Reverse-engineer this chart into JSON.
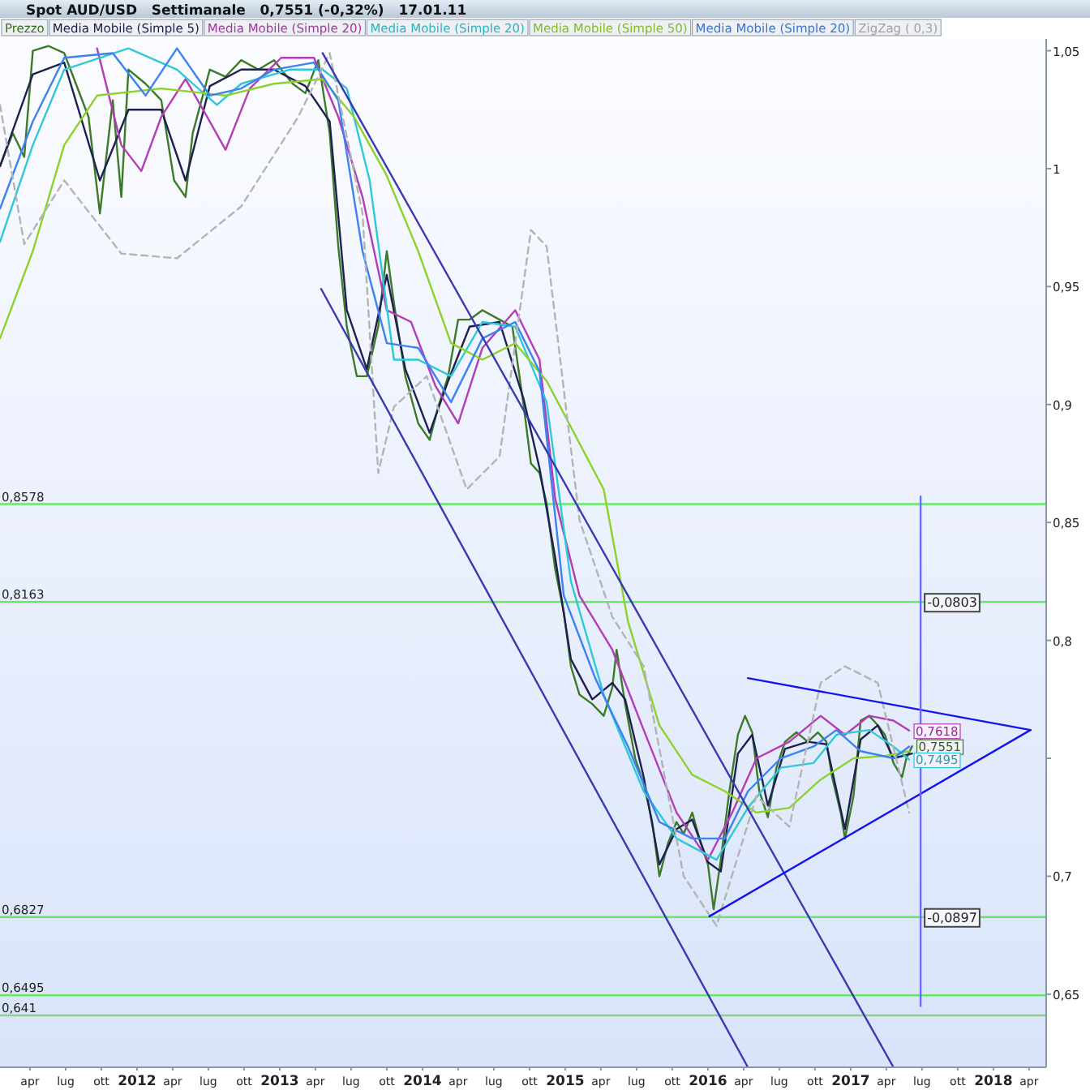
{
  "chart_data": {
    "type": "line",
    "title": "Spot AUD/USD   Settimanale   0,7551 (-0,32%)   17.01.11",
    "legend": "top left",
    "marker": "none",
    "xlim": [
      2011.04,
      2018.37
    ],
    "ylim": [
      0.619,
      1.055
    ],
    "xticks": [
      {
        "value": 2011.25,
        "label": "apr"
      },
      {
        "value": 2011.5,
        "label": "lug"
      },
      {
        "value": 2011.75,
        "label": "ott"
      },
      {
        "value": 2012,
        "label": "2012"
      },
      {
        "value": 2012.25,
        "label": "apr"
      },
      {
        "value": 2012.5,
        "label": "lug"
      },
      {
        "value": 2012.75,
        "label": "ott"
      },
      {
        "value": 2013,
        "label": "2013"
      },
      {
        "value": 2013.25,
        "label": "apr"
      },
      {
        "value": 2013.5,
        "label": "lug"
      },
      {
        "value": 2013.75,
        "label": "ott"
      },
      {
        "value": 2014,
        "label": "2014"
      },
      {
        "value": 2014.25,
        "label": "apr"
      },
      {
        "value": 2014.5,
        "label": "lug"
      },
      {
        "value": 2014.75,
        "label": "ott"
      },
      {
        "value": 2015,
        "label": "2015"
      },
      {
        "value": 2015.25,
        "label": "apr"
      },
      {
        "value": 2015.5,
        "label": "lug"
      },
      {
        "value": 2015.75,
        "label": "ott"
      },
      {
        "value": 2016,
        "label": "2016"
      },
      {
        "value": 2016.25,
        "label": "apr"
      },
      {
        "value": 2016.5,
        "label": "lug"
      },
      {
        "value": 2016.75,
        "label": "ott"
      },
      {
        "value": 2017,
        "label": "2017"
      },
      {
        "value": 2017.25,
        "label": "apr"
      },
      {
        "value": 2017.5,
        "label": "lug"
      },
      {
        "value": 2017.75,
        "label": "ott"
      },
      {
        "value": 2018,
        "label": "2018"
      },
      {
        "value": 2018.25,
        "label": "apr"
      }
    ],
    "yticks": [
      {
        "value": 0.65,
        "label": "0,65"
      },
      {
        "value": 0.7,
        "label": "0,7"
      },
      {
        "value": 0.75,
        "label": null
      },
      {
        "value": 0.8,
        "label": "0,8"
      },
      {
        "value": 0.85,
        "label": "0,85"
      },
      {
        "value": 0.9,
        "label": "0,9"
      },
      {
        "value": 0.95,
        "label": "0,95"
      },
      {
        "value": 1,
        "label": "1"
      },
      {
        "value": 1.05,
        "label": "1,05"
      }
    ],
    "ref_lines": [
      {
        "axis": "y",
        "value": 0.8578,
        "label": "0,8578",
        "color": "#66e866"
      },
      {
        "axis": "y",
        "value": 0.8163,
        "label": "0,8163",
        "color": "#66e866"
      },
      {
        "axis": "y",
        "value": 0.6827,
        "label": "0,6827",
        "color": "#66e866"
      },
      {
        "axis": "y",
        "value": 0.6495,
        "label": "0,6495",
        "color": "#66e866"
      },
      {
        "axis": "y",
        "value": 0.641,
        "label": "0,641",
        "color": "#8fcf8f"
      }
    ],
    "annotations": [
      {
        "text": "-0,0803",
        "x": 2017.49,
        "y": 0.8163
      },
      {
        "text": "-0,0897",
        "x": 2017.49,
        "y": 0.6827
      }
    ],
    "series": [
      {
        "name": "Prezzo",
        "color": "#3c7a28",
        "x": [
          2011.04,
          2011.13,
          2011.21,
          2011.27,
          2011.38,
          2011.49,
          2011.66,
          2011.74,
          2011.83,
          2011.89,
          2011.94,
          2012.06,
          2012.17,
          2012.26,
          2012.34,
          2012.39,
          2012.51,
          2012.62,
          2012.73,
          2012.85,
          2012.96,
          2013.09,
          2013.18,
          2013.27,
          2013.35,
          2013.41,
          2013.47,
          2013.54,
          2013.61,
          2013.69,
          2013.75,
          2013.8,
          2013.88,
          2013.97,
          2014.05,
          2014.11,
          2014.18,
          2014.25,
          2014.33,
          2014.42,
          2014.54,
          2014.63,
          2014.71,
          2014.76,
          2014.82,
          2014.87,
          2014.93,
          2014.99,
          2015.04,
          2015.1,
          2015.19,
          2015.27,
          2015.33,
          2015.36,
          2015.42,
          2015.49,
          2015.55,
          2015.61,
          2015.66,
          2015.72,
          2015.78,
          2015.83,
          2015.89,
          2015.95,
          2016.0,
          2016.04,
          2016.09,
          2016.15,
          2016.21,
          2016.26,
          2016.31,
          2016.36,
          2016.42,
          2016.48,
          2016.54,
          2016.62,
          2016.7,
          2016.77,
          2016.83,
          2016.87,
          2016.93,
          2016.96,
          2017.02,
          2017.07,
          2017.13,
          2017.19,
          2017.24,
          2017.3,
          2017.36,
          2017.39,
          2017.43
        ],
        "values": [
          1.001,
          1.015,
          1.005,
          1.05,
          1.052,
          1.049,
          1.022,
          0.981,
          1.029,
          0.988,
          1.042,
          1.036,
          1.029,
          0.995,
          0.988,
          1.015,
          1.042,
          1.039,
          1.046,
          1.042,
          1.046,
          1.036,
          1.032,
          1.046,
          1.015,
          0.967,
          0.933,
          0.912,
          0.912,
          0.933,
          0.965,
          0.943,
          0.912,
          0.892,
          0.885,
          0.899,
          0.912,
          0.936,
          0.936,
          0.94,
          0.936,
          0.933,
          0.899,
          0.875,
          0.871,
          0.858,
          0.83,
          0.812,
          0.789,
          0.777,
          0.773,
          0.768,
          0.78,
          0.796,
          0.773,
          0.75,
          0.739,
          0.723,
          0.7,
          0.714,
          0.723,
          0.718,
          0.727,
          0.714,
          0.705,
          0.686,
          0.707,
          0.736,
          0.76,
          0.768,
          0.761,
          0.736,
          0.725,
          0.746,
          0.757,
          0.761,
          0.757,
          0.761,
          0.757,
          0.742,
          0.727,
          0.716,
          0.734,
          0.766,
          0.768,
          0.764,
          0.76,
          0.748,
          0.742,
          0.75,
          0.7551
        ],
        "value_labels": [
          null,
          null,
          null,
          null,
          null,
          null,
          null,
          null,
          null,
          null,
          null,
          null,
          null,
          null,
          null,
          null,
          null,
          null,
          null,
          null,
          null,
          null,
          null,
          null,
          null,
          null,
          null,
          null,
          null,
          null,
          null,
          null,
          null,
          null,
          null,
          null,
          null,
          null,
          null,
          null,
          null,
          null,
          null,
          null,
          null,
          null,
          null,
          null,
          null,
          null,
          null,
          null,
          null,
          null,
          null,
          null,
          null,
          null,
          null,
          null,
          null,
          null,
          null,
          null,
          null,
          null,
          null,
          null,
          null,
          null,
          null,
          null,
          null,
          null,
          null,
          null,
          null,
          null,
          null,
          null,
          null,
          null,
          null,
          null,
          null,
          null,
          null,
          null,
          null,
          null,
          "0,7551"
        ]
      },
      {
        "name": "Media Mobile (Simple 5)",
        "color": "#1e2050",
        "x": [
          2011.04,
          2011.27,
          2011.49,
          2011.74,
          2011.94,
          2012.17,
          2012.34,
          2012.51,
          2012.73,
          2012.96,
          2013.18,
          2013.35,
          2013.47,
          2013.61,
          2013.75,
          2013.88,
          2014.05,
          2014.18,
          2014.33,
          2014.54,
          2014.71,
          2014.82,
          2014.93,
          2015.04,
          2015.19,
          2015.33,
          2015.42,
          2015.55,
          2015.66,
          2015.78,
          2015.89,
          2016.0,
          2016.09,
          2016.21,
          2016.31,
          2016.42,
          2016.54,
          2016.7,
          2016.83,
          2016.96,
          2017.07,
          2017.19,
          2017.3,
          2017.43
        ],
        "values": [
          1.001,
          1.04,
          1.045,
          0.995,
          1.025,
          1.025,
          0.995,
          1.035,
          1.042,
          1.042,
          1.035,
          1.02,
          0.94,
          0.915,
          0.955,
          0.915,
          0.888,
          0.91,
          0.933,
          0.935,
          0.902,
          0.873,
          0.835,
          0.792,
          0.775,
          0.782,
          0.775,
          0.742,
          0.705,
          0.72,
          0.724,
          0.706,
          0.702,
          0.752,
          0.76,
          0.73,
          0.754,
          0.757,
          0.756,
          0.72,
          0.758,
          0.764,
          0.75,
          0.752
        ]
      },
      {
        "name": "Media Mobile (Simple 20)",
        "color": "#b43cb4",
        "x": [
          2011.72,
          2011.89,
          2012.03,
          2012.17,
          2012.34,
          2012.51,
          2012.62,
          2012.79,
          2013.01,
          2013.24,
          2013.41,
          2013.58,
          2013.75,
          2013.92,
          2014.09,
          2014.25,
          2014.42,
          2014.65,
          2014.82,
          2014.93,
          2015.1,
          2015.33,
          2015.55,
          2015.78,
          2016.0,
          2016.17,
          2016.34,
          2016.57,
          2016.79,
          2016.96,
          2017.13,
          2017.3,
          2017.41
        ],
        "values": [
          1.051,
          1.01,
          0.999,
          1.022,
          1.038,
          1.02,
          1.008,
          1.034,
          1.047,
          1.047,
          1.022,
          0.988,
          0.94,
          0.935,
          0.908,
          0.892,
          0.924,
          0.94,
          0.919,
          0.86,
          0.819,
          0.796,
          0.762,
          0.727,
          0.707,
          0.727,
          0.75,
          0.757,
          0.768,
          0.76,
          0.768,
          0.766,
          0.7618
        ],
        "value_labels": [
          null,
          null,
          null,
          null,
          null,
          null,
          null,
          null,
          null,
          null,
          null,
          null,
          null,
          null,
          null,
          null,
          null,
          null,
          null,
          null,
          null,
          null,
          null,
          null,
          null,
          null,
          null,
          null,
          null,
          null,
          null,
          null,
          "0,7618"
        ]
      },
      {
        "name": "Media Mobile (Simple 20)",
        "color": "#2ec8d8",
        "x": [
          2011.04,
          2011.27,
          2011.49,
          2011.94,
          2012.28,
          2012.56,
          2012.73,
          2013.07,
          2013.3,
          2013.47,
          2013.63,
          2013.8,
          2013.97,
          2014.2,
          2014.42,
          2014.65,
          2014.87,
          2015.04,
          2015.27,
          2015.55,
          2015.78,
          2016.06,
          2016.28,
          2016.51,
          2016.74,
          2016.9,
          2017.13,
          2017.3,
          2017.41
        ],
        "values": [
          0.969,
          1.01,
          1.042,
          1.051,
          1.042,
          1.027,
          1.036,
          1.042,
          1.042,
          1.034,
          0.995,
          0.919,
          0.919,
          0.912,
          0.935,
          0.933,
          0.901,
          0.825,
          0.777,
          0.736,
          0.716,
          0.707,
          0.729,
          0.746,
          0.748,
          0.76,
          0.762,
          0.755,
          0.7495
        ],
        "value_labels": [
          null,
          null,
          null,
          null,
          null,
          null,
          null,
          null,
          null,
          null,
          null,
          null,
          null,
          null,
          null,
          null,
          null,
          null,
          null,
          null,
          null,
          null,
          null,
          null,
          null,
          null,
          null,
          null,
          "0,7495"
        ]
      },
      {
        "name": "Media Mobile (Simple 50)",
        "color": "#8cd22a",
        "x": [
          2011.04,
          2011.27,
          2011.49,
          2011.72,
          2012.17,
          2012.62,
          2012.96,
          2013.3,
          2013.52,
          2013.75,
          2013.97,
          2014.2,
          2014.42,
          2014.65,
          2014.87,
          2015.27,
          2015.44,
          2015.66,
          2015.89,
          2016.12,
          2016.34,
          2016.57,
          2016.79,
          2017.02,
          2017.24,
          2017.41
        ],
        "values": [
          0.928,
          0.965,
          1.01,
          1.031,
          1.034,
          1.031,
          1.036,
          1.038,
          1.022,
          0.997,
          0.965,
          0.926,
          0.919,
          0.926,
          0.91,
          0.864,
          0.808,
          0.764,
          0.743,
          0.736,
          0.727,
          0.729,
          0.741,
          0.75,
          0.751,
          0.753
        ]
      },
      {
        "name": "Media Mobile (Simple 20)",
        "color": "#3c82f0",
        "x": [
          2011.04,
          2011.27,
          2011.49,
          2011.83,
          2012.06,
          2012.28,
          2012.51,
          2012.73,
          2012.96,
          2013.24,
          2013.41,
          2013.58,
          2013.75,
          2013.97,
          2014.2,
          2014.42,
          2014.65,
          2014.82,
          2014.99,
          2015.21,
          2015.44,
          2015.66,
          2015.89,
          2016.12,
          2016.28,
          2016.51,
          2016.74,
          2016.9,
          2017.07,
          2017.3,
          2017.41
        ],
        "values": [
          0.983,
          1.02,
          1.047,
          1.049,
          1.031,
          1.051,
          1.031,
          1.034,
          1.042,
          1.045,
          1.029,
          0.965,
          0.926,
          0.924,
          0.901,
          0.928,
          0.935,
          0.914,
          0.819,
          0.784,
          0.755,
          0.723,
          0.716,
          0.716,
          0.736,
          0.75,
          0.755,
          0.762,
          0.753,
          0.75,
          0.755
        ]
      },
      {
        "name": "ZigZag ( 0,3)",
        "color": "#b4b4b4",
        "line_style": "dashed",
        "x": [
          2011.04,
          2011.21,
          2011.49,
          2011.89,
          2012.28,
          2012.73,
          2013.13,
          2013.35,
          2013.58,
          2013.69,
          2013.8,
          2014.03,
          2014.31,
          2014.54,
          2014.76,
          2014.87,
          2015.1,
          2015.33,
          2015.55,
          2015.83,
          2016.06,
          2016.34,
          2016.57,
          2016.79,
          2016.96,
          2017.19,
          2017.41
        ],
        "values": [
          1.027,
          0.968,
          0.995,
          0.964,
          0.962,
          0.984,
          1.022,
          1.049,
          0.981,
          0.871,
          0.899,
          0.912,
          0.864,
          0.878,
          0.974,
          0.967,
          0.851,
          0.81,
          0.789,
          0.7,
          0.679,
          0.734,
          0.721,
          0.782,
          0.789,
          0.782,
          0.727
        ]
      },
      {
        "color": "#3a3ab0",
        "x": [
          2013.3,
          2017.3
        ],
        "values": [
          1.049,
          0.619
        ]
      },
      {
        "color": "#3a3ab0",
        "x": [
          2013.29,
          2016.28
        ],
        "values": [
          0.949,
          0.619
        ]
      },
      {
        "color": "#1414f0",
        "x": [
          2016.28,
          2018.26
        ],
        "values": [
          0.784,
          0.762
        ]
      },
      {
        "color": "#1414f0",
        "x": [
          2016.01,
          2018.26
        ],
        "values": [
          0.683,
          0.762
        ]
      },
      {
        "color": "#6a6aff",
        "x": [
          2017.49,
          2017.49
        ],
        "values": [
          0.861,
          0.645
        ]
      }
    ]
  }
}
